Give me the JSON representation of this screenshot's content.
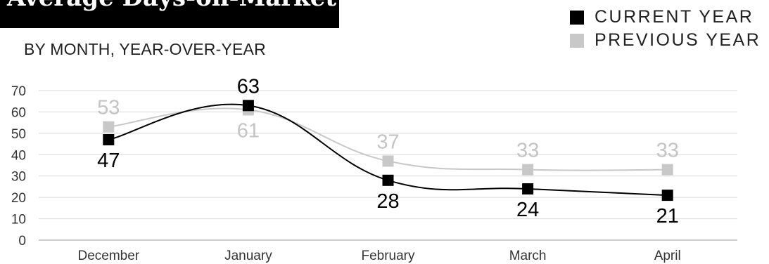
{
  "header": {
    "title": "Average Days-on-Market",
    "subtitle": "BY MONTH, YEAR-OVER-YEAR"
  },
  "legend": [
    {
      "label": "CURRENT YEAR",
      "color": "#000000"
    },
    {
      "label": "PREVIOUS YEAR",
      "color": "#c8c8c8"
    }
  ],
  "chart_data": {
    "type": "line",
    "categories": [
      "December",
      "January",
      "February",
      "March",
      "April"
    ],
    "series": [
      {
        "name": "PREVIOUS YEAR",
        "values": [
          53,
          61,
          37,
          33,
          33
        ],
        "color": "#c8c8c8"
      },
      {
        "name": "CURRENT YEAR",
        "values": [
          47,
          63,
          28,
          24,
          21
        ],
        "color": "#000000"
      }
    ],
    "ylim": [
      0,
      70
    ],
    "yticks": [
      0,
      10,
      20,
      30,
      40,
      50,
      60,
      70
    ],
    "grid": true,
    "smooth": true,
    "data_labels": true,
    "legend_position": "top-right",
    "marker": "square"
  }
}
